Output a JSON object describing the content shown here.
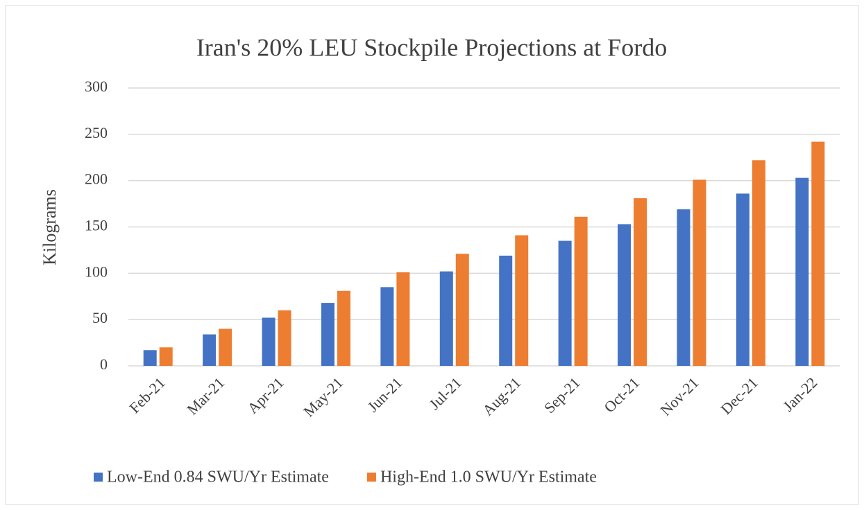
{
  "chart_data": {
    "type": "bar",
    "title": "Iran's 20% LEU Stockpile Projections at Fordo",
    "y_label": "Kilograms",
    "categories": [
      "Feb-21",
      "Mar-21",
      "Apr-21",
      "May-21",
      "Jun-21",
      "Jul-21",
      "Aug-21",
      "Sep-21",
      "Oct-21",
      "Nov-21",
      "Dec-21",
      "Jan-22"
    ],
    "series": [
      {
        "name": "Low-End 0.84 SWU/Yr Estimate",
        "color": "#4472c4",
        "values": [
          17,
          34,
          52,
          68,
          85,
          102,
          119,
          135,
          153,
          169,
          186,
          203
        ]
      },
      {
        "name": "High-End 1.0 SWU/Yr Estimate",
        "color": "#ed7d31",
        "values": [
          20,
          40,
          60,
          81,
          101,
          121,
          141,
          161,
          181,
          201,
          222,
          242
        ]
      }
    ],
    "ylim": [
      0,
      300
    ],
    "yticks": [
      0,
      50,
      100,
      150,
      200,
      250,
      300
    ],
    "grid": true,
    "legend": "bottom"
  }
}
